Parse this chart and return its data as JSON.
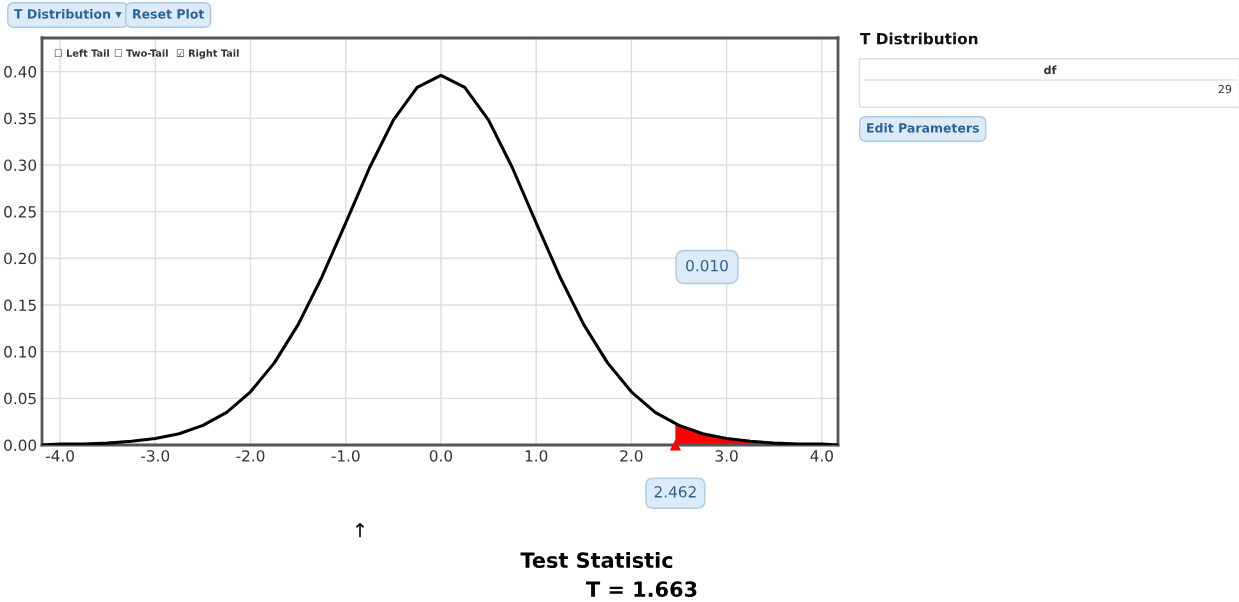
{
  "chart_data": {
    "type": "line",
    "xlim": [
      -4.19,
      4.17
    ],
    "ylim": [
      0,
      0.436
    ],
    "xticks": [
      {
        "value": -4,
        "label": "-4.0"
      },
      {
        "value": -3,
        "label": "-3.0"
      },
      {
        "value": -2,
        "label": "-2.0"
      },
      {
        "value": -1,
        "label": "-1.0"
      },
      {
        "value": 0,
        "label": "0.0"
      },
      {
        "value": 1,
        "label": "1.0"
      },
      {
        "value": 2,
        "label": "2.0"
      },
      {
        "value": 3,
        "label": "3.0"
      },
      {
        "value": 4,
        "label": "4.0"
      }
    ],
    "yticks": [
      {
        "value": 0,
        "label": "0.00"
      },
      {
        "value": 0.05,
        "label": "0.05"
      },
      {
        "value": 0.1,
        "label": "0.10"
      },
      {
        "value": 0.15,
        "label": "0.15"
      },
      {
        "value": 0.2,
        "label": "0.20"
      },
      {
        "value": 0.25,
        "label": "0.25"
      },
      {
        "value": 0.3,
        "label": "0.30"
      },
      {
        "value": 0.35,
        "label": "0.35"
      },
      {
        "value": 0.4,
        "label": "0.40"
      }
    ],
    "grid": true,
    "series": [
      {
        "color": "#000000",
        "x": [
          -4.19,
          -4,
          -3.75,
          -3.5,
          -3.25,
          -3,
          -2.75,
          -2.5,
          -2.25,
          -2,
          -1.75,
          -1.5,
          -1.25,
          -1,
          -0.75,
          -0.5,
          -0.25,
          0,
          0.25,
          0.5,
          0.75,
          1,
          1.25,
          1.5,
          1.75,
          2,
          2.25,
          2.5,
          2.75,
          3,
          3.25,
          3.5,
          3.75,
          4,
          4.17
        ],
        "values": [
          0,
          0.001,
          0.001,
          0.002,
          0.004,
          0.007,
          0.012,
          0.021,
          0.035,
          0.057,
          0.088,
          0.129,
          0.18,
          0.238,
          0.297,
          0.348,
          0.383,
          0.396,
          0.383,
          0.348,
          0.297,
          0.238,
          0.18,
          0.129,
          0.088,
          0.057,
          0.035,
          0.021,
          0.012,
          0.007,
          0.004,
          0.002,
          0.001,
          0.001,
          0
        ]
      },
      {
        "type": "area",
        "color": "#ff0000",
        "x": [
          2.462,
          2.5,
          2.75,
          3,
          3.25,
          3.5,
          3.75,
          4,
          4.17
        ],
        "values": [
          0.023,
          0.021,
          0.012,
          0.007,
          0.004,
          0.002,
          0.001,
          0.001,
          0
        ]
      }
    ],
    "annotations": [
      {
        "text": "2.462",
        "x": 2.462,
        "y": 0
      },
      "0.010",
      "T Distribution ▾",
      "Reset Plot",
      "☐ Left Tail",
      "☐ Two-Tail",
      "☑ Right Tail",
      "T Distribution",
      "df",
      "29",
      "Edit Parameters",
      "↑",
      "Test Statistic",
      "T = 1.663"
    ]
  }
}
